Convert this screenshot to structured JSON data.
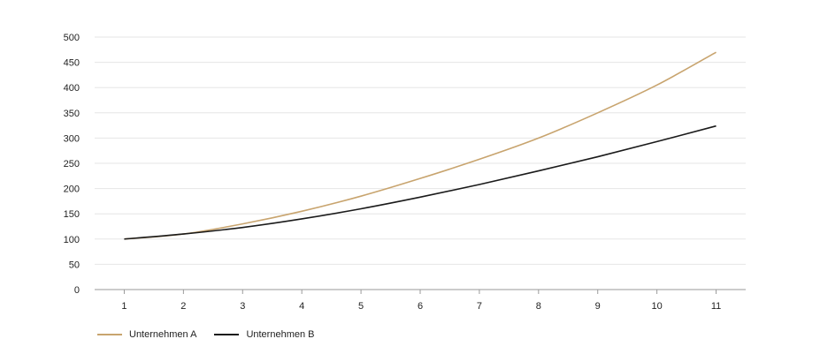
{
  "chart_data": {
    "type": "line",
    "title": "",
    "xlabel": "",
    "ylabel": "",
    "x": [
      1,
      2,
      3,
      4,
      5,
      6,
      7,
      8,
      9,
      10,
      11
    ],
    "xlim": [
      0.5,
      11.5
    ],
    "ylim": [
      0,
      500
    ],
    "y_ticks": [
      0,
      50,
      100,
      150,
      200,
      250,
      300,
      350,
      400,
      450,
      500
    ],
    "grid": true,
    "legend_position": "bottom-left",
    "series": [
      {
        "name": "Unternehmen A",
        "color": "#c8a46e",
        "values": [
          100,
          110,
          130,
          155,
          185,
          220,
          258,
          300,
          350,
          405,
          470
        ]
      },
      {
        "name": "Unternehmen B",
        "color": "#1a1a1a",
        "values": [
          100,
          110,
          123,
          140,
          160,
          183,
          208,
          235,
          263,
          293,
          324
        ]
      }
    ]
  }
}
